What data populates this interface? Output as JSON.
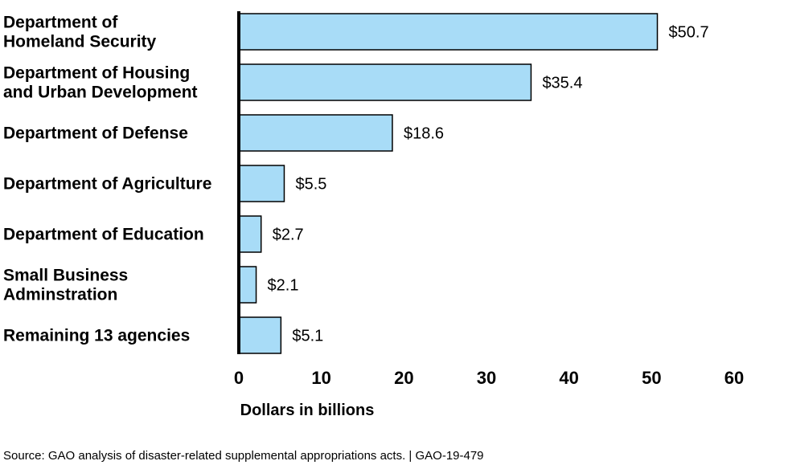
{
  "chart_data": {
    "type": "bar",
    "orientation": "horizontal",
    "categories": [
      [
        "Department of",
        "Homeland Security"
      ],
      [
        "Department of Housing",
        "and Urban Development"
      ],
      [
        "Department of Defense"
      ],
      [
        "Department of Agriculture"
      ],
      [
        "Department of Education"
      ],
      [
        "Small Business",
        "Adminstration"
      ],
      [
        "Remaining 13 agencies"
      ]
    ],
    "values": [
      50.7,
      35.4,
      18.6,
      5.5,
      2.7,
      2.1,
      5.1
    ],
    "value_labels": [
      "$50.7",
      "$35.4",
      "$18.6",
      "$5.5",
      "$2.7",
      "$2.1",
      "$5.1"
    ],
    "xlabel": "Dollars in billions",
    "xlim": [
      0,
      60
    ],
    "xticks": [
      0,
      10,
      20,
      30,
      40,
      50,
      60
    ],
    "grid": false,
    "bar_color": "#a8dcf7",
    "bar_edge_color": "#000000"
  },
  "source": "Source: GAO analysis of disaster-related supplemental appropriations acts.  |  GAO-19-479"
}
